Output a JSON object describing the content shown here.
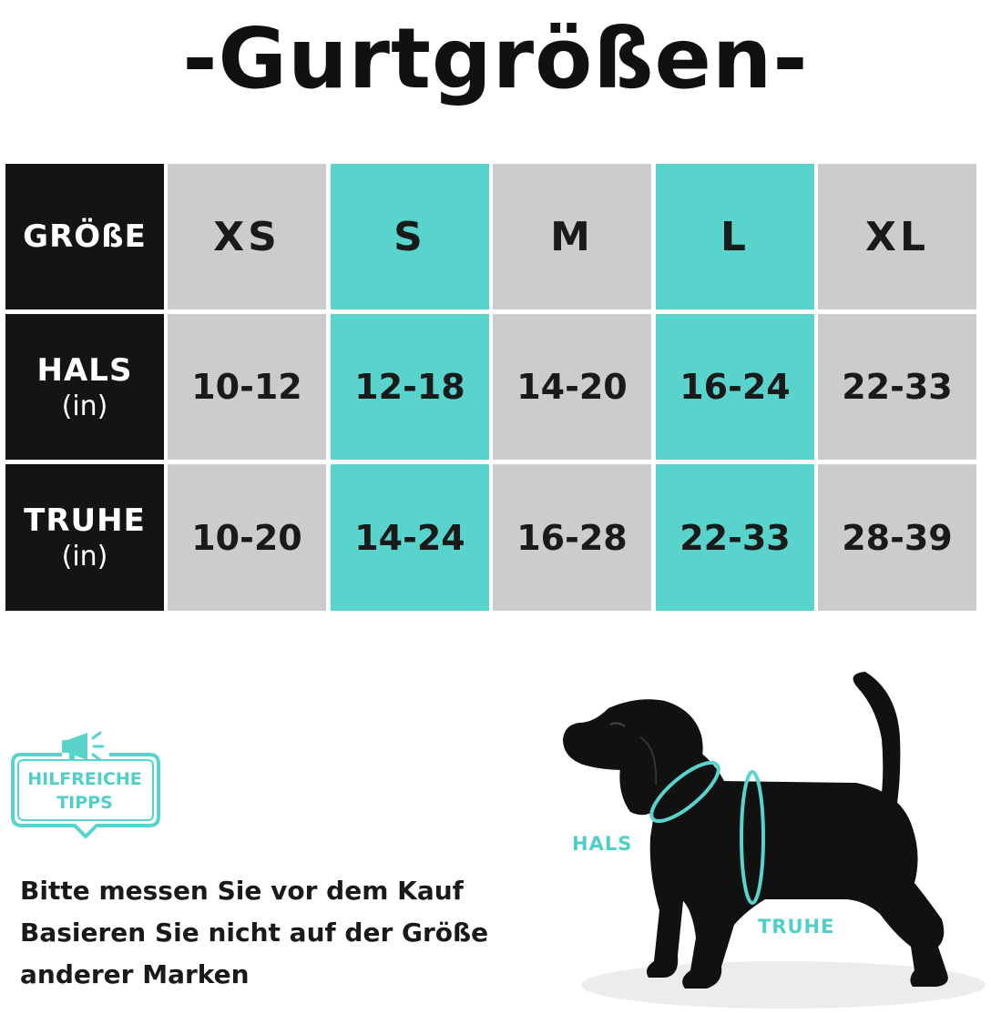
{
  "title": "-Gurtgrößen-",
  "table": {
    "size_header": "GRÖßE",
    "sizes": [
      "XS",
      "S",
      "M",
      "L",
      "XL"
    ],
    "rows": [
      {
        "label": "HALS",
        "unit": "(in)",
        "values": [
          "10-12",
          "12-18",
          "14-20",
          "16-24",
          "22-33"
        ]
      },
      {
        "label": "TRUHE",
        "unit": "(in)",
        "values": [
          "10-20",
          "14-24",
          "16-28",
          "22-33",
          "28-39"
        ]
      }
    ],
    "highlighted_columns": [
      "S",
      "L"
    ]
  },
  "tips_badge": {
    "line1": "HILFREICHE",
    "line2": "TIPPS",
    "icon": "megaphone-icon"
  },
  "note": {
    "lines": [
      "Bitte messen Sie vor dem Kauf",
      "Basieren Sie nicht auf der Größe",
      "anderer Marken"
    ]
  },
  "diagram": {
    "neck_label": "HALS",
    "chest_label": "TRUHE"
  },
  "colors": {
    "accent": "#58d4cc",
    "header": "#141414",
    "cell": "#cccccc",
    "text": "#1a1a1a"
  }
}
